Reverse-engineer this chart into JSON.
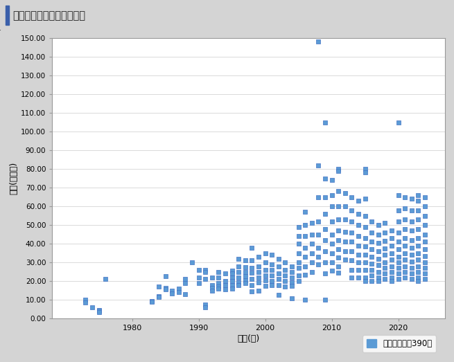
{
  "title": "直近１年の取引情報グラフ",
  "xlabel": "築年(年)",
  "ylabel": "価格(百万円)",
  "legend_label": "沖縄県全域：390件",
  "marker_color": "#5b9bd5",
  "marker_edge_color": "#4472c4",
  "plot_bg_color": "#ffffff",
  "outer_bg_color": "#d4d4d4",
  "header_bg_color": "#e8eef4",
  "footer_bg_color": "#e8e8e8",
  "title_bar_color": "#3a5faa",
  "ylim": [
    0,
    150
  ],
  "ytick_step": 10,
  "xlim": [
    1968,
    2027
  ],
  "scatter_data": [
    [
      1973,
      10.0
    ],
    [
      1973,
      8.5
    ],
    [
      1974,
      6.0
    ],
    [
      1975,
      4.5
    ],
    [
      1975,
      4.0
    ],
    [
      1975,
      3.5
    ],
    [
      1976,
      21.0
    ],
    [
      1983,
      9.5
    ],
    [
      1983,
      9.0
    ],
    [
      1984,
      17.0
    ],
    [
      1984,
      12.0
    ],
    [
      1984,
      11.5
    ],
    [
      1985,
      22.5
    ],
    [
      1985,
      16.5
    ],
    [
      1985,
      15.5
    ],
    [
      1986,
      15.0
    ],
    [
      1986,
      13.5
    ],
    [
      1987,
      16.0
    ],
    [
      1987,
      14.0
    ],
    [
      1988,
      21.0
    ],
    [
      1988,
      19.0
    ],
    [
      1988,
      13.0
    ],
    [
      1989,
      30.0
    ],
    [
      1990,
      26.0
    ],
    [
      1990,
      22.0
    ],
    [
      1990,
      19.0
    ],
    [
      1991,
      26.0
    ],
    [
      1991,
      25.0
    ],
    [
      1991,
      21.0
    ],
    [
      1991,
      7.5
    ],
    [
      1991,
      6.0
    ],
    [
      1992,
      22.0
    ],
    [
      1992,
      18.0
    ],
    [
      1992,
      16.5
    ],
    [
      1992,
      15.0
    ],
    [
      1993,
      25.0
    ],
    [
      1993,
      22.0
    ],
    [
      1993,
      19.0
    ],
    [
      1993,
      17.0
    ],
    [
      1993,
      16.0
    ],
    [
      1994,
      24.0
    ],
    [
      1994,
      20.0
    ],
    [
      1994,
      18.0
    ],
    [
      1994,
      15.5
    ],
    [
      1995,
      25.5
    ],
    [
      1995,
      24.0
    ],
    [
      1995,
      22.0
    ],
    [
      1995,
      20.0
    ],
    [
      1995,
      18.0
    ],
    [
      1995,
      16.0
    ],
    [
      1996,
      32.0
    ],
    [
      1996,
      28.0
    ],
    [
      1996,
      25.0
    ],
    [
      1996,
      22.0
    ],
    [
      1996,
      19.5
    ],
    [
      1996,
      18.0
    ],
    [
      1997,
      31.0
    ],
    [
      1997,
      27.5
    ],
    [
      1997,
      25.0
    ],
    [
      1997,
      22.5
    ],
    [
      1997,
      20.5
    ],
    [
      1997,
      19.0
    ],
    [
      1998,
      38.0
    ],
    [
      1998,
      31.0
    ],
    [
      1998,
      27.0
    ],
    [
      1998,
      24.5
    ],
    [
      1998,
      21.0
    ],
    [
      1998,
      18.0
    ],
    [
      1998,
      14.5
    ],
    [
      1999,
      33.0
    ],
    [
      1999,
      28.0
    ],
    [
      1999,
      25.0
    ],
    [
      1999,
      22.0
    ],
    [
      1999,
      19.5
    ],
    [
      1999,
      15.0
    ],
    [
      2000,
      35.0
    ],
    [
      2000,
      30.0
    ],
    [
      2000,
      26.0
    ],
    [
      2000,
      23.0
    ],
    [
      2000,
      20.5
    ],
    [
      2000,
      17.5
    ],
    [
      2001,
      34.0
    ],
    [
      2001,
      29.0
    ],
    [
      2001,
      26.0
    ],
    [
      2001,
      23.0
    ],
    [
      2001,
      20.0
    ],
    [
      2001,
      18.0
    ],
    [
      2002,
      32.0
    ],
    [
      2002,
      28.0
    ],
    [
      2002,
      24.0
    ],
    [
      2002,
      21.0
    ],
    [
      2002,
      18.0
    ],
    [
      2002,
      12.5
    ],
    [
      2003,
      30.0
    ],
    [
      2003,
      26.0
    ],
    [
      2003,
      23.0
    ],
    [
      2003,
      20.0
    ],
    [
      2003,
      17.0
    ],
    [
      2004,
      28.0
    ],
    [
      2004,
      25.0
    ],
    [
      2004,
      22.0
    ],
    [
      2004,
      19.5
    ],
    [
      2004,
      17.5
    ],
    [
      2004,
      11.0
    ],
    [
      2005,
      49.0
    ],
    [
      2005,
      44.0
    ],
    [
      2005,
      40.0
    ],
    [
      2005,
      35.0
    ],
    [
      2005,
      30.0
    ],
    [
      2005,
      27.0
    ],
    [
      2005,
      23.0
    ],
    [
      2005,
      20.0
    ],
    [
      2006,
      57.0
    ],
    [
      2006,
      50.0
    ],
    [
      2006,
      44.0
    ],
    [
      2006,
      38.0
    ],
    [
      2006,
      33.0
    ],
    [
      2006,
      28.0
    ],
    [
      2006,
      23.5
    ],
    [
      2006,
      10.0
    ],
    [
      2007,
      51.0
    ],
    [
      2007,
      45.0
    ],
    [
      2007,
      40.0
    ],
    [
      2007,
      35.0
    ],
    [
      2007,
      30.0
    ],
    [
      2007,
      25.0
    ],
    [
      2008,
      148.0
    ],
    [
      2008,
      82.0
    ],
    [
      2008,
      65.0
    ],
    [
      2008,
      52.0
    ],
    [
      2008,
      45.0
    ],
    [
      2008,
      38.0
    ],
    [
      2008,
      33.0
    ],
    [
      2008,
      29.0
    ],
    [
      2009,
      105.0
    ],
    [
      2009,
      75.0
    ],
    [
      2009,
      65.0
    ],
    [
      2009,
      56.0
    ],
    [
      2009,
      48.0
    ],
    [
      2009,
      42.0
    ],
    [
      2009,
      36.0
    ],
    [
      2009,
      30.0
    ],
    [
      2009,
      24.0
    ],
    [
      2009,
      10.0
    ],
    [
      2010,
      74.0
    ],
    [
      2010,
      66.0
    ],
    [
      2010,
      60.0
    ],
    [
      2010,
      52.0
    ],
    [
      2010,
      45.0
    ],
    [
      2010,
      40.0
    ],
    [
      2010,
      35.0
    ],
    [
      2010,
      30.0
    ],
    [
      2010,
      25.5
    ],
    [
      2011,
      80.0
    ],
    [
      2011,
      79.0
    ],
    [
      2011,
      68.0
    ],
    [
      2011,
      60.0
    ],
    [
      2011,
      53.0
    ],
    [
      2011,
      47.0
    ],
    [
      2011,
      42.0
    ],
    [
      2011,
      37.0
    ],
    [
      2011,
      32.5
    ],
    [
      2011,
      28.0
    ],
    [
      2011,
      24.5
    ],
    [
      2012,
      67.0
    ],
    [
      2012,
      60.0
    ],
    [
      2012,
      53.0
    ],
    [
      2012,
      46.5
    ],
    [
      2012,
      41.0
    ],
    [
      2012,
      36.0
    ],
    [
      2012,
      31.5
    ],
    [
      2013,
      65.0
    ],
    [
      2013,
      58.0
    ],
    [
      2013,
      52.0
    ],
    [
      2013,
      46.0
    ],
    [
      2013,
      41.0
    ],
    [
      2013,
      36.0
    ],
    [
      2013,
      31.0
    ],
    [
      2013,
      26.0
    ],
    [
      2013,
      22.0
    ],
    [
      2014,
      63.0
    ],
    [
      2014,
      56.0
    ],
    [
      2014,
      50.0
    ],
    [
      2014,
      44.0
    ],
    [
      2014,
      39.0
    ],
    [
      2014,
      34.0
    ],
    [
      2014,
      30.0
    ],
    [
      2014,
      26.0
    ],
    [
      2014,
      22.0
    ],
    [
      2015,
      80.0
    ],
    [
      2015,
      78.0
    ],
    [
      2015,
      64.0
    ],
    [
      2015,
      55.0
    ],
    [
      2015,
      49.0
    ],
    [
      2015,
      43.0
    ],
    [
      2015,
      38.5
    ],
    [
      2015,
      34.0
    ],
    [
      2015,
      30.0
    ],
    [
      2015,
      26.0
    ],
    [
      2015,
      22.0
    ],
    [
      2015,
      20.0
    ],
    [
      2016,
      52.0
    ],
    [
      2016,
      46.0
    ],
    [
      2016,
      41.0
    ],
    [
      2016,
      37.0
    ],
    [
      2016,
      33.0
    ],
    [
      2016,
      29.5
    ],
    [
      2016,
      26.0
    ],
    [
      2016,
      23.0
    ],
    [
      2016,
      20.0
    ],
    [
      2017,
      50.0
    ],
    [
      2017,
      45.0
    ],
    [
      2017,
      40.5
    ],
    [
      2017,
      36.0
    ],
    [
      2017,
      32.0
    ],
    [
      2017,
      28.5
    ],
    [
      2017,
      25.0
    ],
    [
      2017,
      22.0
    ],
    [
      2017,
      20.0
    ],
    [
      2018,
      51.0
    ],
    [
      2018,
      46.0
    ],
    [
      2018,
      41.5
    ],
    [
      2018,
      37.5
    ],
    [
      2018,
      34.0
    ],
    [
      2018,
      30.0
    ],
    [
      2018,
      27.0
    ],
    [
      2018,
      24.0
    ],
    [
      2018,
      21.0
    ],
    [
      2019,
      47.0
    ],
    [
      2019,
      43.0
    ],
    [
      2019,
      39.0
    ],
    [
      2019,
      35.0
    ],
    [
      2019,
      31.5
    ],
    [
      2019,
      28.0
    ],
    [
      2019,
      25.0
    ],
    [
      2019,
      22.0
    ],
    [
      2019,
      20.0
    ],
    [
      2020,
      105.0
    ],
    [
      2020,
      66.0
    ],
    [
      2020,
      58.0
    ],
    [
      2020,
      52.0
    ],
    [
      2020,
      46.0
    ],
    [
      2020,
      41.0
    ],
    [
      2020,
      37.0
    ],
    [
      2020,
      33.0
    ],
    [
      2020,
      30.0
    ],
    [
      2020,
      27.0
    ],
    [
      2020,
      24.0
    ],
    [
      2020,
      21.0
    ],
    [
      2021,
      65.0
    ],
    [
      2021,
      59.0
    ],
    [
      2021,
      53.0
    ],
    [
      2021,
      48.0
    ],
    [
      2021,
      43.0
    ],
    [
      2021,
      39.0
    ],
    [
      2021,
      35.0
    ],
    [
      2021,
      31.5
    ],
    [
      2021,
      28.0
    ],
    [
      2021,
      25.0
    ],
    [
      2021,
      22.0
    ],
    [
      2022,
      64.0
    ],
    [
      2022,
      58.0
    ],
    [
      2022,
      52.0
    ],
    [
      2022,
      47.0
    ],
    [
      2022,
      42.0
    ],
    [
      2022,
      38.0
    ],
    [
      2022,
      34.0
    ],
    [
      2022,
      30.5
    ],
    [
      2022,
      27.0
    ],
    [
      2022,
      24.0
    ],
    [
      2022,
      21.0
    ],
    [
      2023,
      66.0
    ],
    [
      2023,
      63.0
    ],
    [
      2023,
      58.0
    ],
    [
      2023,
      53.0
    ],
    [
      2023,
      48.0
    ],
    [
      2023,
      43.0
    ],
    [
      2023,
      39.0
    ],
    [
      2023,
      35.0
    ],
    [
      2023,
      31.5
    ],
    [
      2023,
      28.0
    ],
    [
      2023,
      25.0
    ],
    [
      2023,
      22.0
    ],
    [
      2023,
      20.0
    ],
    [
      2024,
      65.0
    ],
    [
      2024,
      60.0
    ],
    [
      2024,
      55.0
    ],
    [
      2024,
      50.0
    ],
    [
      2024,
      45.0
    ],
    [
      2024,
      41.0
    ],
    [
      2024,
      37.0
    ],
    [
      2024,
      33.5
    ],
    [
      2024,
      30.0
    ],
    [
      2024,
      27.0
    ],
    [
      2024,
      24.0
    ],
    [
      2024,
      21.0
    ]
  ]
}
